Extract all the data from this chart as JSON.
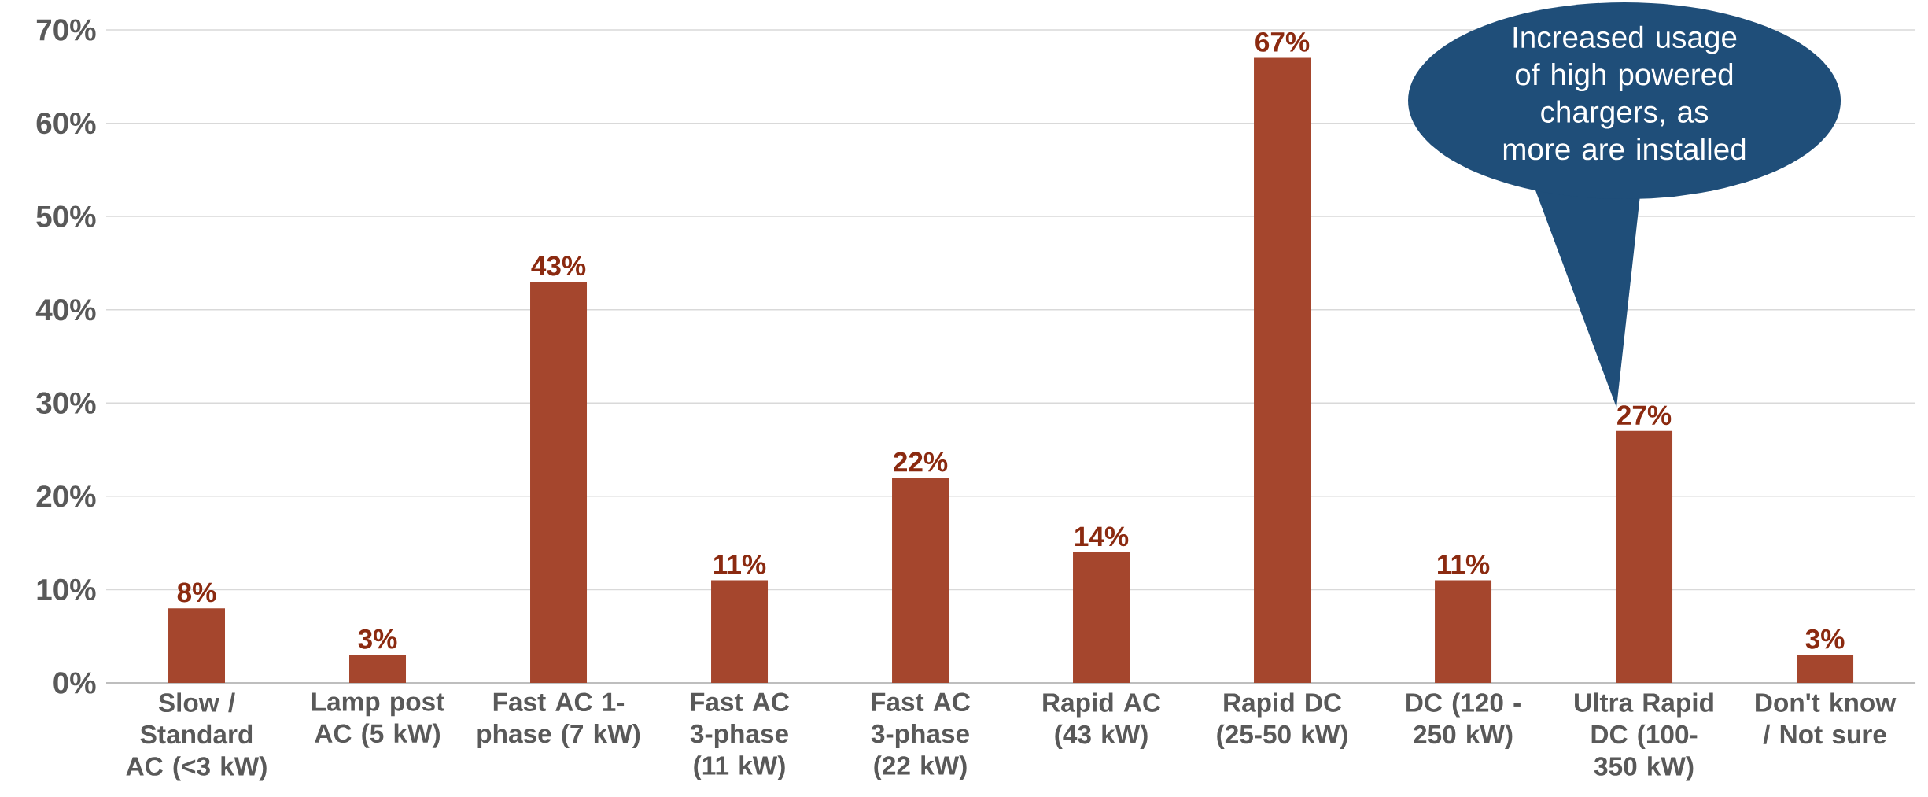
{
  "chart_data": {
    "type": "bar",
    "categories": [
      "Slow / Standard AC (<3 kW)",
      "Lamp post AC (5 kW)",
      "Fast AC 1-phase (7 kW)",
      "Fast AC 3-phase (11 kW)",
      "Fast AC 3-phase (22 kW)",
      "Rapid AC (43 kW)",
      "Rapid DC (25-50 kW)",
      "DC (120 - 250 kW)",
      "Ultra Rapid DC (100-350 kW)",
      "Don't know / Not sure"
    ],
    "values": [
      8,
      3,
      43,
      11,
      22,
      14,
      67,
      11,
      27,
      3
    ],
    "value_labels": [
      "8%",
      "3%",
      "43%",
      "11%",
      "22%",
      "14%",
      "67%",
      "11%",
      "27%",
      "3%"
    ],
    "color": "#a5462d",
    "ylim": [
      0,
      70
    ],
    "yticks": [
      {
        "value": 0,
        "label": "0%"
      },
      {
        "value": 10,
        "label": "10%"
      },
      {
        "value": 20,
        "label": "20%"
      },
      {
        "value": 30,
        "label": "30%"
      },
      {
        "value": 40,
        "label": "40%"
      },
      {
        "value": 50,
        "label": "50%"
      },
      {
        "value": 60,
        "label": "60%"
      },
      {
        "value": 70,
        "label": "70%"
      }
    ],
    "grid": "y",
    "annotations": [
      "Increased usage of high powered chargers, as more are installed"
    ]
  }
}
